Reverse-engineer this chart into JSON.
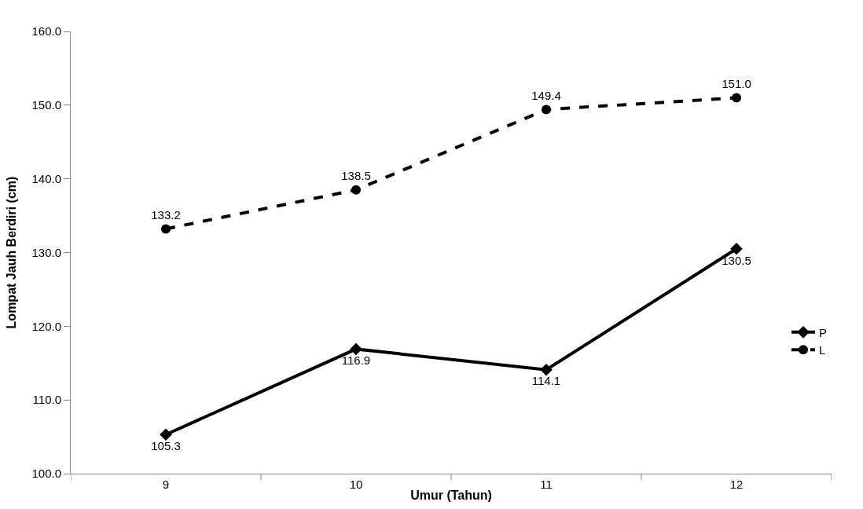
{
  "chart_data": {
    "type": "line",
    "xlabel": "Umur (Tahun)",
    "ylabel": "Lompat Jauh Berdiri (cm)",
    "categories": [
      "9",
      "10",
      "11",
      "12"
    ],
    "series": [
      {
        "name": "P",
        "color": "#000000",
        "values": [
          105.3,
          116.9,
          114.1,
          130.5
        ],
        "value_labels": [
          "105.3",
          "116.9",
          "114.1",
          "130.5"
        ],
        "marker": "diamond",
        "line_style": "solid"
      },
      {
        "name": "L",
        "color": "#000000",
        "values": [
          133.2,
          138.5,
          149.4,
          151.0
        ],
        "value_labels": [
          "133.2",
          "138.5",
          "149.4",
          "151.0"
        ],
        "marker": "circle",
        "line_style": "dashed"
      }
    ],
    "ylim": [
      100,
      160
    ],
    "yticks": [
      {
        "value": 100,
        "label": "100.0"
      },
      {
        "value": 110,
        "label": "110.0"
      },
      {
        "value": 120,
        "label": "120.0"
      },
      {
        "value": 130,
        "label": "130.0"
      },
      {
        "value": 140,
        "label": "140.0"
      },
      {
        "value": 150,
        "label": "150.0"
      },
      {
        "value": 160,
        "label": "160.0"
      }
    ],
    "legend": "right"
  }
}
